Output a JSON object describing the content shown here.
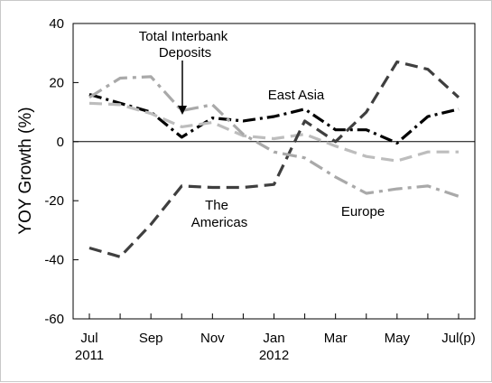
{
  "chart_data": {
    "type": "line",
    "title": "",
    "xlabel": "",
    "ylabel": "YOY Growth (%)",
    "ylim": [
      -60,
      40
    ],
    "yticks": [
      -60,
      -40,
      -20,
      0,
      20,
      40
    ],
    "x": [
      0,
      1,
      2,
      3,
      4,
      5,
      6,
      7,
      8,
      9,
      10,
      11,
      12
    ],
    "xtick_labels": [
      {
        "x": 0,
        "label": "Jul",
        "sublabel": "2011"
      },
      {
        "x": 2,
        "label": "Sep",
        "sublabel": ""
      },
      {
        "x": 4,
        "label": "Nov",
        "sublabel": ""
      },
      {
        "x": 6,
        "label": "Jan",
        "sublabel": "2012"
      },
      {
        "x": 8,
        "label": "Mar",
        "sublabel": ""
      },
      {
        "x": 10,
        "label": "May",
        "sublabel": ""
      },
      {
        "x": 12,
        "label": "Jul(p)",
        "sublabel": ""
      }
    ],
    "series": [
      {
        "name": "Total Interbank Deposits",
        "color": "#000000",
        "dash": "long-dash-dot",
        "values": [
          16,
          13,
          10,
          1.5,
          8,
          7,
          8.5,
          11,
          4,
          4,
          -0.5,
          8.5,
          11
        ]
      },
      {
        "name": "East Asia",
        "color": "#bdbdbd",
        "dash": "dash",
        "values": [
          13,
          12.5,
          9.5,
          5,
          6.5,
          2,
          1,
          2.5,
          -1.5,
          -5,
          -6.5,
          -3.5,
          -3.5
        ]
      },
      {
        "name": "The Americas",
        "color": "#3f3f3f",
        "dash": "dash",
        "values": [
          -36,
          -39,
          -28,
          -15,
          -15.5,
          -15.5,
          -14.5,
          7,
          0,
          10,
          27,
          24.5,
          15
        ]
      },
      {
        "name": "Europe",
        "color": "#a9a9a9",
        "dash": "dash-dot",
        "values": [
          15,
          21.5,
          22,
          10.5,
          12.5,
          2.5,
          -3.5,
          -5.5,
          -12,
          -17.5,
          -16,
          -15,
          -18.5
        ]
      }
    ],
    "annotations": {
      "total_line1": "Total Interbank",
      "total_line2": "Deposits",
      "east_asia": "East Asia",
      "americas_line1": "The",
      "americas_line2": "Americas",
      "europe": "Europe"
    },
    "grid": false,
    "legend": "none (inline labels)"
  }
}
